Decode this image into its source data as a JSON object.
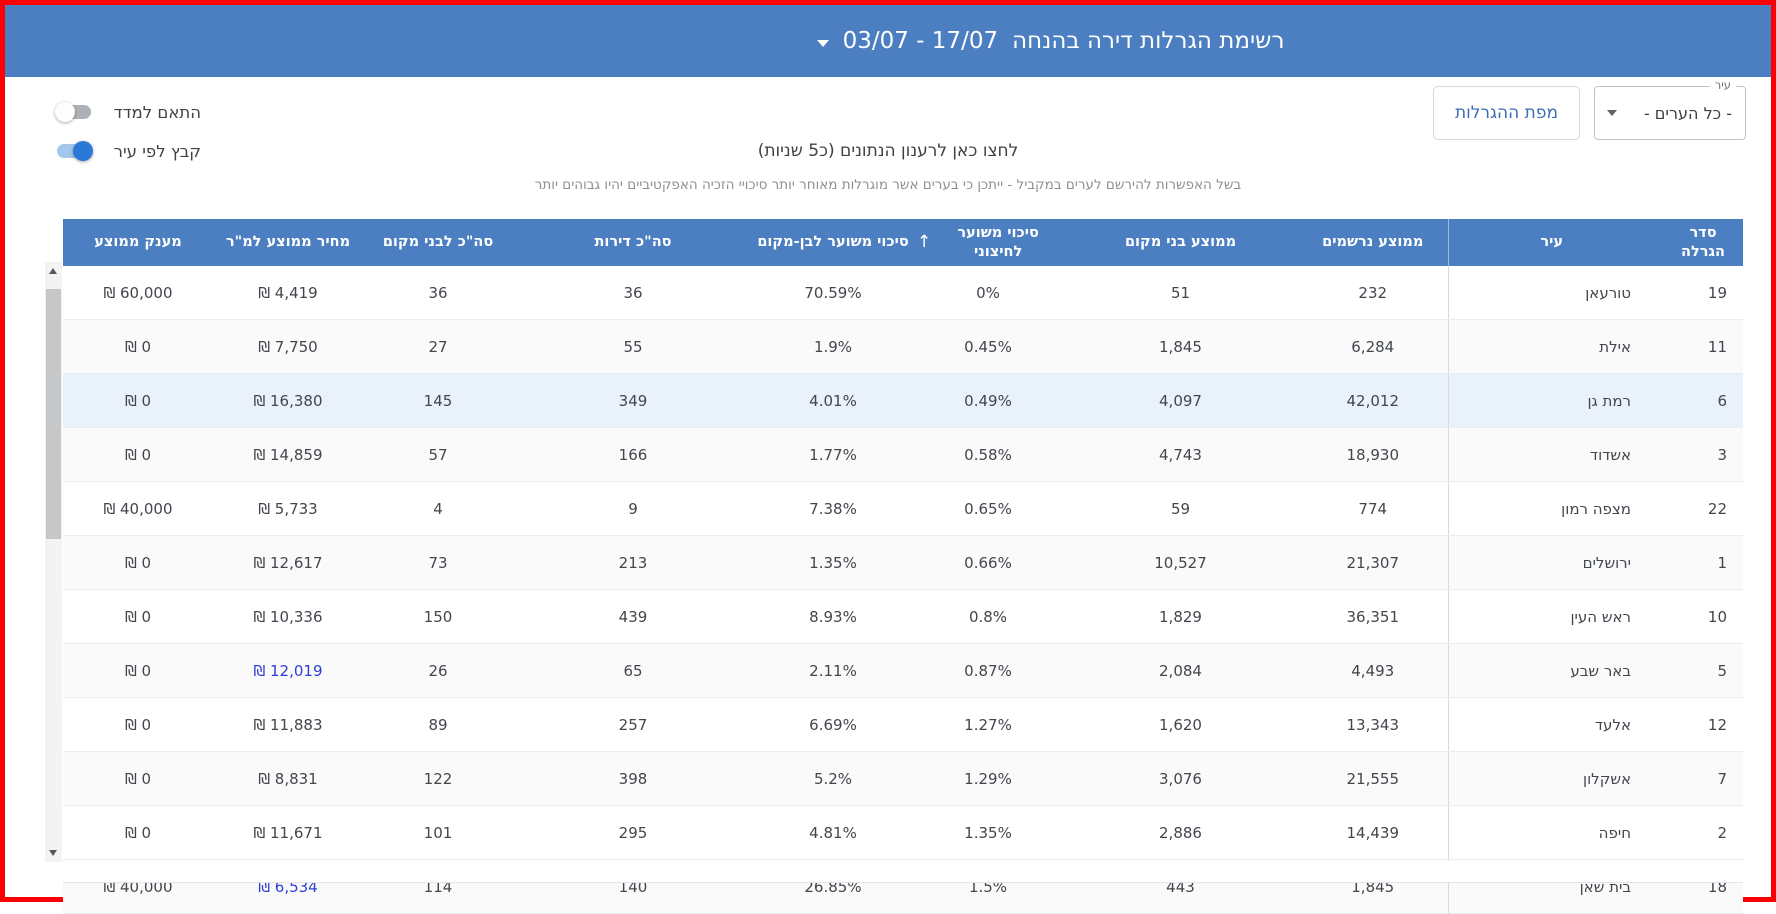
{
  "header": {
    "title": "רשימת הגרלות דירה בהנחה",
    "date_range": "03/07 - 17/07"
  },
  "controls": {
    "city_filter": {
      "label": "עיר",
      "value": "- כל הערים -"
    },
    "map_button_label": "מפת ההגרלות",
    "toggles": [
      {
        "label": "התאם למדד",
        "state": "off"
      },
      {
        "label": "קבץ לפי עיר",
        "state": "on"
      }
    ],
    "refresh_text": "לחצו כאן לרענון הנתונים (כ5 שניות)",
    "note_text": "בשל האפשרות להירשם לערים במקביל - ייתכן כי בערים אשר מוגרלות מאוחר יותר סיכויי הזכיה האפקטיביים יהיו גבוהים יותר"
  },
  "table": {
    "currency_symbol": "₪",
    "sort_icon": "↑",
    "columns": [
      {
        "key": "order",
        "label": "סדר הגרלה"
      },
      {
        "key": "city",
        "label": "עיר"
      },
      {
        "key": "registrants",
        "label": "ממוצע נרשמים"
      },
      {
        "key": "avg_locals",
        "label": "ממוצע בני מקום"
      },
      {
        "key": "chance_external",
        "label": "סיכוי משוער לחיצוני",
        "sorted": "asc"
      },
      {
        "key": "chance_local",
        "label": "סיכוי משוער לבן-מקום"
      },
      {
        "key": "total_units",
        "label": "סה\"כ דירות"
      },
      {
        "key": "total_locals",
        "label": "סה\"כ לבני מקום"
      },
      {
        "key": "price_per_sqm",
        "label": "מחיר ממוצע למ\"ר",
        "money": true
      },
      {
        "key": "avg_grant",
        "label": "מענק ממוצע",
        "money": true
      }
    ],
    "rows": [
      {
        "order": "19",
        "city": "טורעאן",
        "registrants": "232",
        "avg_locals": "51",
        "chance_external": "0%",
        "chance_local": "70.59%",
        "total_units": "36",
        "total_locals": "36",
        "price_per_sqm": "4,419",
        "price_is_link": false,
        "avg_grant": "60,000"
      },
      {
        "order": "11",
        "city": "אילת",
        "registrants": "6,284",
        "avg_locals": "1,845",
        "chance_external": "0.45%",
        "chance_local": "1.9%",
        "total_units": "55",
        "total_locals": "27",
        "price_per_sqm": "7,750",
        "price_is_link": false,
        "avg_grant": "0"
      },
      {
        "order": "6",
        "city": "רמת גן",
        "registrants": "42,012",
        "avg_locals": "4,097",
        "chance_external": "0.49%",
        "chance_local": "4.01%",
        "total_units": "349",
        "total_locals": "145",
        "price_per_sqm": "16,380",
        "price_is_link": false,
        "avg_grant": "0",
        "highlighted": true
      },
      {
        "order": "3",
        "city": "אשדוד",
        "registrants": "18,930",
        "avg_locals": "4,743",
        "chance_external": "0.58%",
        "chance_local": "1.77%",
        "total_units": "166",
        "total_locals": "57",
        "price_per_sqm": "14,859",
        "price_is_link": false,
        "avg_grant": "0"
      },
      {
        "order": "22",
        "city": "מצפה רמון",
        "registrants": "774",
        "avg_locals": "59",
        "chance_external": "0.65%",
        "chance_local": "7.38%",
        "total_units": "9",
        "total_locals": "4",
        "price_per_sqm": "5,733",
        "price_is_link": false,
        "avg_grant": "40,000"
      },
      {
        "order": "1",
        "city": "ירושלים",
        "registrants": "21,307",
        "avg_locals": "10,527",
        "chance_external": "0.66%",
        "chance_local": "1.35%",
        "total_units": "213",
        "total_locals": "73",
        "price_per_sqm": "12,617",
        "price_is_link": false,
        "avg_grant": "0"
      },
      {
        "order": "10",
        "city": "ראש העין",
        "registrants": "36,351",
        "avg_locals": "1,829",
        "chance_external": "0.8%",
        "chance_local": "8.93%",
        "total_units": "439",
        "total_locals": "150",
        "price_per_sqm": "10,336",
        "price_is_link": false,
        "avg_grant": "0"
      },
      {
        "order": "5",
        "city": "באר שבע",
        "registrants": "4,493",
        "avg_locals": "2,084",
        "chance_external": "0.87%",
        "chance_local": "2.11%",
        "total_units": "65",
        "total_locals": "26",
        "price_per_sqm": "12,019",
        "price_is_link": true,
        "avg_grant": "0"
      },
      {
        "order": "12",
        "city": "אלעד",
        "registrants": "13,343",
        "avg_locals": "1,620",
        "chance_external": "1.27%",
        "chance_local": "6.69%",
        "total_units": "257",
        "total_locals": "89",
        "price_per_sqm": "11,883",
        "price_is_link": false,
        "avg_grant": "0"
      },
      {
        "order": "7",
        "city": "אשקלון",
        "registrants": "21,555",
        "avg_locals": "3,076",
        "chance_external": "1.29%",
        "chance_local": "5.2%",
        "total_units": "398",
        "total_locals": "122",
        "price_per_sqm": "8,831",
        "price_is_link": false,
        "avg_grant": "0"
      },
      {
        "order": "2",
        "city": "חיפה",
        "registrants": "14,439",
        "avg_locals": "2,886",
        "chance_external": "1.35%",
        "chance_local": "4.81%",
        "total_units": "295",
        "total_locals": "101",
        "price_per_sqm": "11,671",
        "price_is_link": false,
        "avg_grant": "0"
      },
      {
        "order": "18",
        "city": "בית שאן",
        "registrants": "1,845",
        "avg_locals": "443",
        "chance_external": "1.5%",
        "chance_local": "26.85%",
        "total_units": "140",
        "total_locals": "114",
        "price_per_sqm": "6,534",
        "price_is_link": true,
        "avg_grant": "40,000"
      }
    ]
  },
  "colors": {
    "header_blue": "#4b7fc1",
    "link_blue": "#2c3ed6",
    "button_blue": "#3a6db4",
    "highlight_row": "#e9f2fb",
    "frame_red": "#fb0003"
  }
}
